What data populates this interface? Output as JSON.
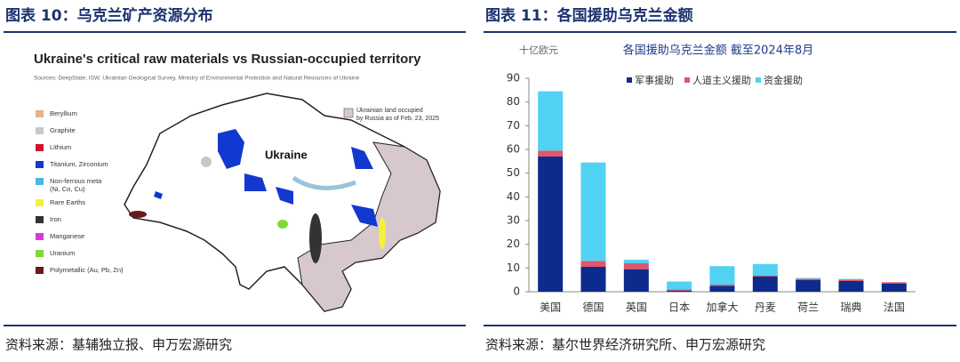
{
  "left_panel": {
    "heading": "图表 10：乌克兰矿产资源分布",
    "map_title": "Ukraine's critical raw materials vs Russian-occupied territory",
    "map_sources": "Sources: DeepState, ISW, Ukrainian Geological Survey, Ministry of Environmental Protection and Natural Resources of Ukraine",
    "legend": [
      {
        "lines": [
          "Beryllium"
        ],
        "color": "#e3b48f"
      },
      {
        "lines": [
          "Graphite"
        ],
        "color": "#c8c8c8"
      },
      {
        "lines": [
          "Lithium"
        ],
        "color": "#d0142c"
      },
      {
        "lines": [
          "Titanium, Zirconium"
        ],
        "color": "#1238d0"
      },
      {
        "lines": [
          "Non-ferrous meta",
          "(Ni, Co, Cu)"
        ],
        "color": "#45b8e8"
      },
      {
        "lines": [
          "Rare Earths"
        ],
        "color": "#f5f03c"
      },
      {
        "lines": [
          "Iron"
        ],
        "color": "#333333"
      },
      {
        "lines": [
          "Manganese"
        ],
        "color": "#d43ad8"
      },
      {
        "lines": [
          "Uranium"
        ],
        "color": "#7ed83a"
      },
      {
        "lines": [
          "Polymetallic (Au, Pb, Zn)"
        ],
        "color": "#6a1a1a"
      }
    ],
    "occupied_label": [
      "Ukrainian land occupied",
      "by Russia as of Feb. 23, 2025"
    ],
    "occupied_color": "#d6c8cc",
    "country_label": "Ukraine",
    "source": "资料来源：基辅独立报、申万宏源研究"
  },
  "right_panel": {
    "heading": "图表 11：各国援助乌克兰金额",
    "source": "资料来源：基尔世界经济研究所、申万宏源研究"
  },
  "chart_data": {
    "type": "stacked_bar",
    "title": "各国援助乌克兰金额 截至2024年8月",
    "y_unit": "十亿欧元",
    "categories": [
      "美国",
      "德国",
      "英国",
      "日本",
      "加拿大",
      "丹麦",
      "荷兰",
      "瑞典",
      "法国"
    ],
    "series": [
      {
        "name": "军事援助",
        "color": "#0d2b8c",
        "values": [
          57,
          10.5,
          9.5,
          0.5,
          2.5,
          6.5,
          5,
          4.5,
          3.5
        ]
      },
      {
        "name": "人道主义援助",
        "color": "#e0566b",
        "values": [
          2.5,
          2.5,
          2.5,
          0.5,
          0.5,
          0.4,
          0.5,
          0.6,
          0.5
        ]
      },
      {
        "name": "资金援助",
        "color": "#52d2f2",
        "values": [
          25,
          41.5,
          1.5,
          3.3,
          7.8,
          4.8,
          0.3,
          0.3,
          0
        ]
      }
    ],
    "ylim": [
      0,
      90
    ],
    "yticks": [
      0,
      10,
      20,
      30,
      40,
      50,
      60,
      70,
      80,
      90
    ],
    "grid": false
  }
}
